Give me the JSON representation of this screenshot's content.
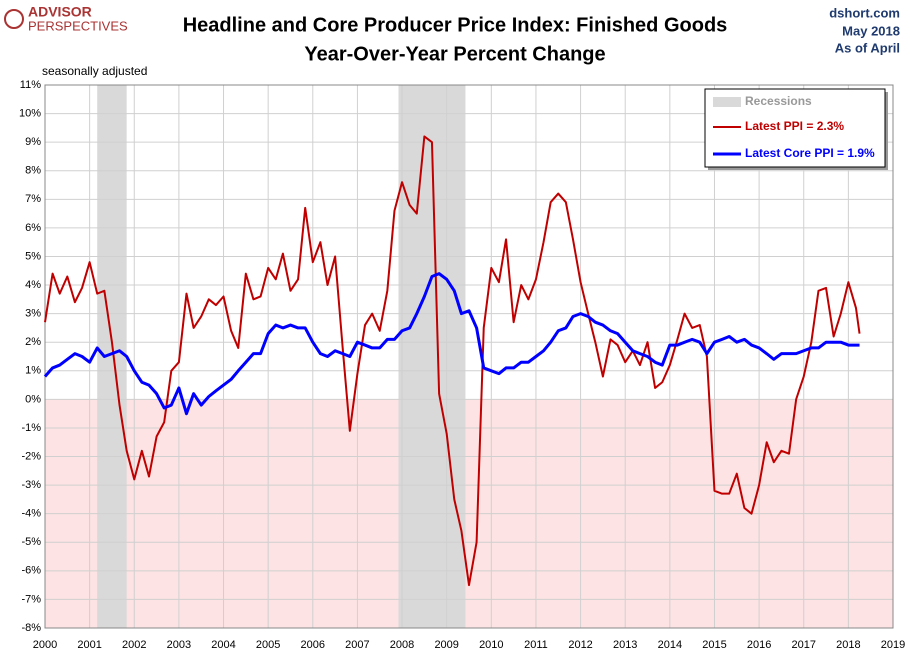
{
  "chart_data": {
    "type": "line",
    "title": "Headline and Core Producer Price Index: Finished Goods",
    "subtitle": "Year-Over-Year Percent Change",
    "source": "dshort.com",
    "date": "May 2018",
    "as_of": "As of April",
    "note": "seasonally adjusted",
    "logo_top": "ADVISOR",
    "logo_bottom": "PERSPECTIVES",
    "recession_label": "Recessions",
    "recession_color": "#d9d9d9",
    "recessions": [
      [
        2001.17,
        2001.83
      ],
      [
        2007.92,
        2009.42
      ]
    ],
    "negative_shading": "#fde3e3",
    "legend": "upper right",
    "grid": true,
    "x": [
      2000,
      2000.17,
      2000.33,
      2000.5,
      2000.67,
      2000.83,
      2001,
      2001.17,
      2001.33,
      2001.5,
      2001.67,
      2001.83,
      2002,
      2002.17,
      2002.33,
      2002.5,
      2002.67,
      2002.83,
      2003,
      2003.17,
      2003.33,
      2003.5,
      2003.67,
      2003.83,
      2004,
      2004.17,
      2004.33,
      2004.5,
      2004.67,
      2004.83,
      2005,
      2005.17,
      2005.33,
      2005.5,
      2005.67,
      2005.83,
      2006,
      2006.17,
      2006.33,
      2006.5,
      2006.67,
      2006.83,
      2007,
      2007.17,
      2007.33,
      2007.5,
      2007.67,
      2007.83,
      2008,
      2008.17,
      2008.33,
      2008.5,
      2008.67,
      2008.83,
      2009,
      2009.17,
      2009.33,
      2009.5,
      2009.67,
      2009.83,
      2010,
      2010.17,
      2010.33,
      2010.5,
      2010.67,
      2010.83,
      2011,
      2011.17,
      2011.33,
      2011.5,
      2011.67,
      2011.83,
      2012,
      2012.17,
      2012.33,
      2012.5,
      2012.67,
      2012.83,
      2013,
      2013.17,
      2013.33,
      2013.5,
      2013.67,
      2013.83,
      2014,
      2014.17,
      2014.33,
      2014.5,
      2014.67,
      2014.83,
      2015,
      2015.17,
      2015.33,
      2015.5,
      2015.67,
      2015.83,
      2016,
      2016.17,
      2016.33,
      2016.5,
      2016.67,
      2016.83,
      2017,
      2017.17,
      2017.33,
      2017.5,
      2017.67,
      2017.83,
      2018,
      2018.17,
      2018.25
    ],
    "series": [
      {
        "name": "Latest PPI = 2.3%",
        "color": "#c00000",
        "width": 2,
        "values": [
          2.7,
          4.4,
          3.7,
          4.3,
          3.4,
          3.9,
          4.8,
          3.7,
          3.8,
          2.0,
          -0.2,
          -1.8,
          -2.8,
          -1.8,
          -2.7,
          -1.3,
          -0.8,
          1.0,
          1.3,
          3.7,
          2.5,
          2.9,
          3.5,
          3.3,
          3.6,
          2.4,
          1.8,
          4.4,
          3.5,
          3.6,
          4.6,
          4.2,
          5.1,
          3.8,
          4.2,
          6.7,
          4.8,
          5.5,
          4.0,
          5.0,
          1.8,
          -1.1,
          0.9,
          2.6,
          3.0,
          2.4,
          3.8,
          6.6,
          7.6,
          6.8,
          6.5,
          9.2,
          9.0,
          0.2,
          -1.2,
          -3.5,
          -4.6,
          -6.5,
          -5.0,
          2.5,
          4.6,
          4.1,
          5.6,
          2.7,
          4.0,
          3.5,
          4.2,
          5.5,
          6.9,
          7.2,
          6.9,
          5.6,
          4.1,
          3.0,
          2.0,
          0.8,
          2.1,
          1.9,
          1.3,
          1.7,
          1.2,
          2.0,
          0.4,
          0.6,
          1.2,
          2.1,
          3.0,
          2.5,
          2.6,
          1.5,
          -3.2,
          -3.3,
          -3.3,
          -2.6,
          -3.8,
          -4.0,
          -3.0,
          -1.5,
          -2.2,
          -1.8,
          -1.9,
          0.0,
          0.8,
          2.0,
          3.8,
          3.9,
          2.2,
          3.0,
          4.1,
          3.2,
          2.3
        ]
      },
      {
        "name": "Latest Core PPI = 1.9%",
        "color": "#0000ff",
        "width": 3,
        "values": [
          0.8,
          1.1,
          1.2,
          1.4,
          1.6,
          1.5,
          1.3,
          1.8,
          1.5,
          1.6,
          1.7,
          1.5,
          1.0,
          0.6,
          0.5,
          0.2,
          -0.3,
          -0.2,
          0.4,
          -0.5,
          0.2,
          -0.2,
          0.1,
          0.3,
          0.5,
          0.7,
          1.0,
          1.3,
          1.6,
          1.6,
          2.3,
          2.6,
          2.5,
          2.6,
          2.5,
          2.5,
          2.0,
          1.6,
          1.5,
          1.7,
          1.6,
          1.5,
          2.0,
          1.9,
          1.8,
          1.8,
          2.1,
          2.1,
          2.4,
          2.5,
          3.0,
          3.6,
          4.3,
          4.4,
          4.2,
          3.8,
          3.0,
          3.1,
          2.5,
          1.1,
          1.0,
          0.9,
          1.1,
          1.1,
          1.3,
          1.3,
          1.5,
          1.7,
          2.0,
          2.4,
          2.5,
          2.9,
          3.0,
          2.9,
          2.7,
          2.6,
          2.4,
          2.3,
          2.0,
          1.7,
          1.6,
          1.5,
          1.3,
          1.2,
          1.9,
          1.9,
          2.0,
          2.1,
          2.0,
          1.6,
          2.0,
          2.1,
          2.2,
          2.0,
          2.1,
          1.9,
          1.8,
          1.6,
          1.4,
          1.6,
          1.6,
          1.6,
          1.7,
          1.8,
          1.8,
          2.0,
          2.0,
          2.0,
          1.9,
          1.9,
          1.9
        ]
      }
    ],
    "xlim": [
      2000,
      2019
    ],
    "xticks": [
      2000,
      2001,
      2002,
      2003,
      2004,
      2005,
      2006,
      2007,
      2008,
      2009,
      2010,
      2011,
      2012,
      2013,
      2014,
      2015,
      2016,
      2017,
      2018,
      2019
    ],
    "ylim": [
      -8,
      11
    ],
    "yticks": [
      {
        "value": -8,
        "label": "-8%"
      },
      {
        "value": -7,
        "label": "-7%"
      },
      {
        "value": -6,
        "label": "-6%"
      },
      {
        "value": -5,
        "label": "-5%"
      },
      {
        "value": -4,
        "label": "-4%"
      },
      {
        "value": -3,
        "label": "-3%"
      },
      {
        "value": -2,
        "label": "-2%"
      },
      {
        "value": -1,
        "label": "-1%"
      },
      {
        "value": 0,
        "label": "0%"
      },
      {
        "value": 1,
        "label": "1%"
      },
      {
        "value": 2,
        "label": "2%"
      },
      {
        "value": 3,
        "label": "3%"
      },
      {
        "value": 4,
        "label": "4%"
      },
      {
        "value": 5,
        "label": "5%"
      },
      {
        "value": 6,
        "label": "6%"
      },
      {
        "value": 7,
        "label": "7%"
      },
      {
        "value": 8,
        "label": "8%"
      },
      {
        "value": 9,
        "label": "9%"
      },
      {
        "value": 10,
        "label": "10%"
      },
      {
        "value": 11,
        "label": "11%"
      }
    ]
  }
}
